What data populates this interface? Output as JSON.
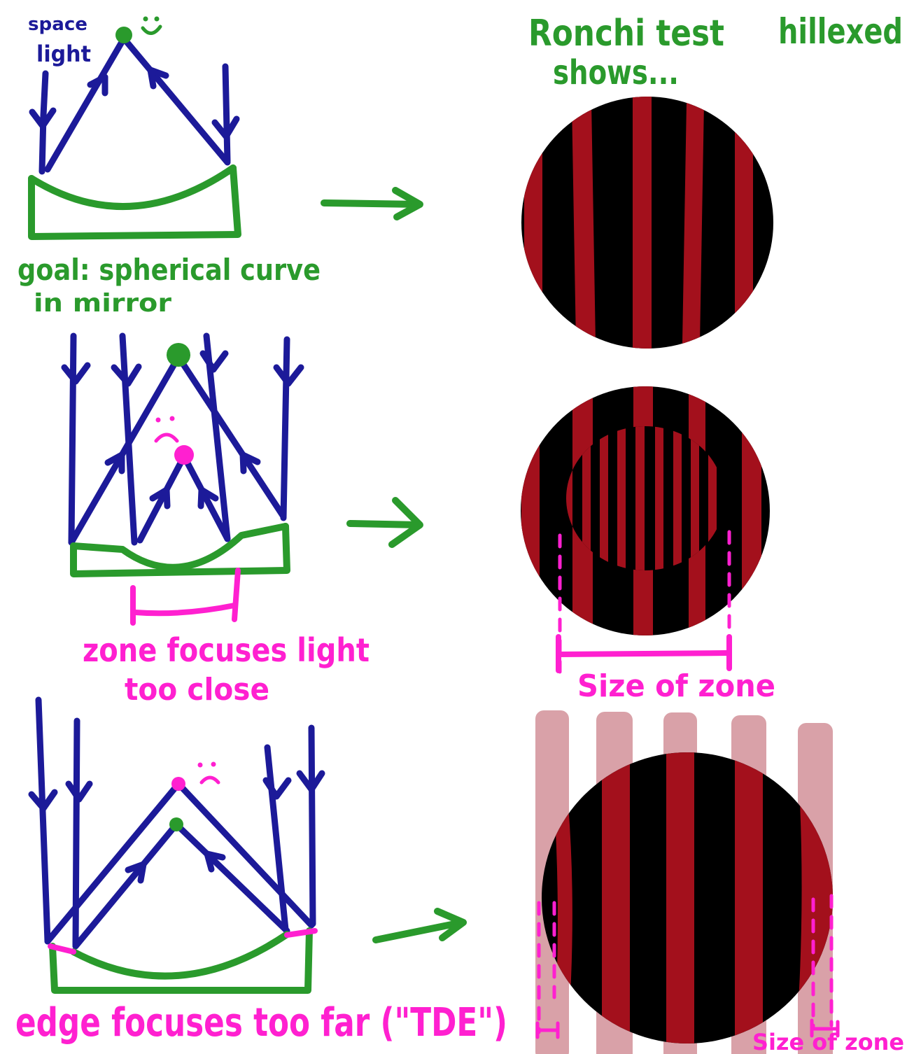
{
  "labels": {
    "space": "space",
    "light": "light",
    "ronchi_title": "Ronchi test",
    "hillexed": "hillexed",
    "shows": "shows...",
    "goal_line1": "goal: spherical curve",
    "goal_line2": "in mirror",
    "zone_line1": "zone focuses light",
    "zone_line2": "too close",
    "size_of_zone_middle": "Size of zone",
    "edge_caption": "edge focuses too far (\"TDE\")",
    "size_of_zone_bottom": "Size of zone"
  },
  "colors": {
    "blue": "#1c1a99",
    "green": "#2a9a2c",
    "magenta": "#ff20d0",
    "red": "#a3101c",
    "black": "#000000",
    "pink": "#d9a1a8"
  }
}
